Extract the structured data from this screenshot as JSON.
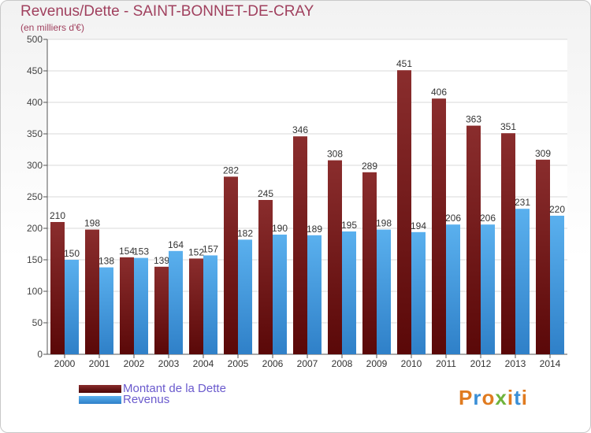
{
  "chart_data": {
    "type": "bar",
    "title": "Revenus/Dette - SAINT-BONNET-DE-CRAY",
    "subtitle": "(en milliers d'€)",
    "categories": [
      "2000",
      "2001",
      "2002",
      "2003",
      "2004",
      "2005",
      "2006",
      "2007",
      "2008",
      "2009",
      "2010",
      "2011",
      "2012",
      "2013",
      "2014"
    ],
    "series": [
      {
        "name": "Montant de la Dette",
        "color": "#7a1c1c",
        "values": [
          210,
          198,
          154,
          139,
          152,
          282,
          245,
          346,
          308,
          289,
          451,
          406,
          363,
          351,
          309
        ]
      },
      {
        "name": "Revenus",
        "color": "#4aa3e6",
        "values": [
          150,
          138,
          153,
          164,
          157,
          182,
          190,
          189,
          195,
          198,
          194,
          206,
          206,
          231,
          220
        ]
      }
    ],
    "ylim": [
      0,
      500
    ],
    "yticks": [
      0,
      50,
      100,
      150,
      200,
      250,
      300,
      350,
      400,
      450,
      500
    ],
    "grid": true,
    "legend_position": "bottom-left"
  },
  "brand": {
    "text": "Proxiti",
    "colors": [
      "#e07b20",
      "#3a8fd6",
      "#e07b20",
      "#6fb33c",
      "#e07b20",
      "#3a8fd6",
      "#e07b20"
    ]
  }
}
